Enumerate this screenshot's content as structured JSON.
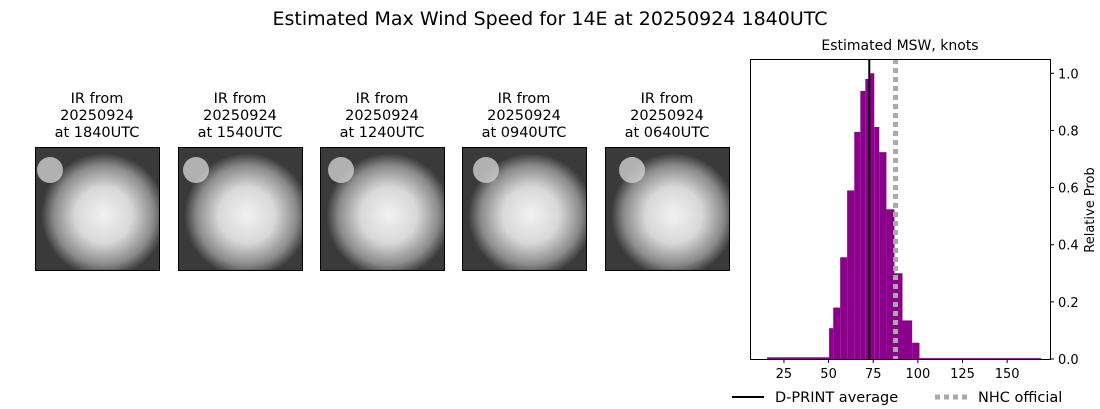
{
  "title": "Estimated Max Wind Speed for 14E at 20250924 1840UTC",
  "panels": [
    {
      "line1": "IR from",
      "line2": "20250924",
      "line3": "at 1840UTC"
    },
    {
      "line1": "IR from",
      "line2": "20250924",
      "line3": "at 1540UTC"
    },
    {
      "line1": "IR from",
      "line2": "20250924",
      "line3": "at 1240UTC"
    },
    {
      "line1": "IR from",
      "line2": "20250924",
      "line3": "at 0940UTC"
    },
    {
      "line1": "IR from",
      "line2": "20250924",
      "line3": "at 0640UTC"
    }
  ],
  "chart_data": {
    "type": "bar",
    "title": "Estimated MSW, knots",
    "xlabel": "",
    "ylabel": "Relative Prob",
    "xlim": [
      6,
      174
    ],
    "ylim": [
      0,
      1.05
    ],
    "xticks": [
      25,
      50,
      75,
      100,
      125,
      150
    ],
    "yticks": [
      0.0,
      0.2,
      0.4,
      0.6,
      0.8,
      1.0
    ],
    "ytick_labels": [
      "0.0",
      "0.2",
      "0.4",
      "0.6",
      "0.8",
      "1.0"
    ],
    "bar_color": "#8b008b",
    "bins": [
      {
        "x0": 15.6,
        "x1": 50.3,
        "value": 0.006
      },
      {
        "x0": 50.3,
        "x1": 52.6,
        "value": 0.108
      },
      {
        "x0": 52.6,
        "x1": 56.5,
        "value": 0.18
      },
      {
        "x0": 56.5,
        "x1": 60.4,
        "value": 0.356
      },
      {
        "x0": 60.4,
        "x1": 64.4,
        "value": 0.59
      },
      {
        "x0": 64.4,
        "x1": 67.8,
        "value": 0.795
      },
      {
        "x0": 67.8,
        "x1": 70.6,
        "value": 0.938
      },
      {
        "x0": 70.6,
        "x1": 72.8,
        "value": 0.98
      },
      {
        "x0": 72.8,
        "x1": 75.6,
        "value": 1.0
      },
      {
        "x0": 75.6,
        "x1": 78.4,
        "value": 0.812
      },
      {
        "x0": 78.4,
        "x1": 82.4,
        "value": 0.724
      },
      {
        "x0": 82.4,
        "x1": 86.9,
        "value": 0.524
      },
      {
        "x0": 86.9,
        "x1": 91.4,
        "value": 0.3
      },
      {
        "x0": 91.4,
        "x1": 96.8,
        "value": 0.135
      },
      {
        "x0": 96.8,
        "x1": 100.9,
        "value": 0.057
      },
      {
        "x0": 100.9,
        "x1": 169,
        "value": 0.003
      }
    ],
    "lines": [
      {
        "name": "D-PRINT average",
        "x": 72.8,
        "color": "#000000",
        "style": "solid"
      },
      {
        "name": "NHC official",
        "x": 87.5,
        "color": "#aaaaaa",
        "style": "dotted"
      }
    ],
    "legend_placement": "bottom"
  }
}
